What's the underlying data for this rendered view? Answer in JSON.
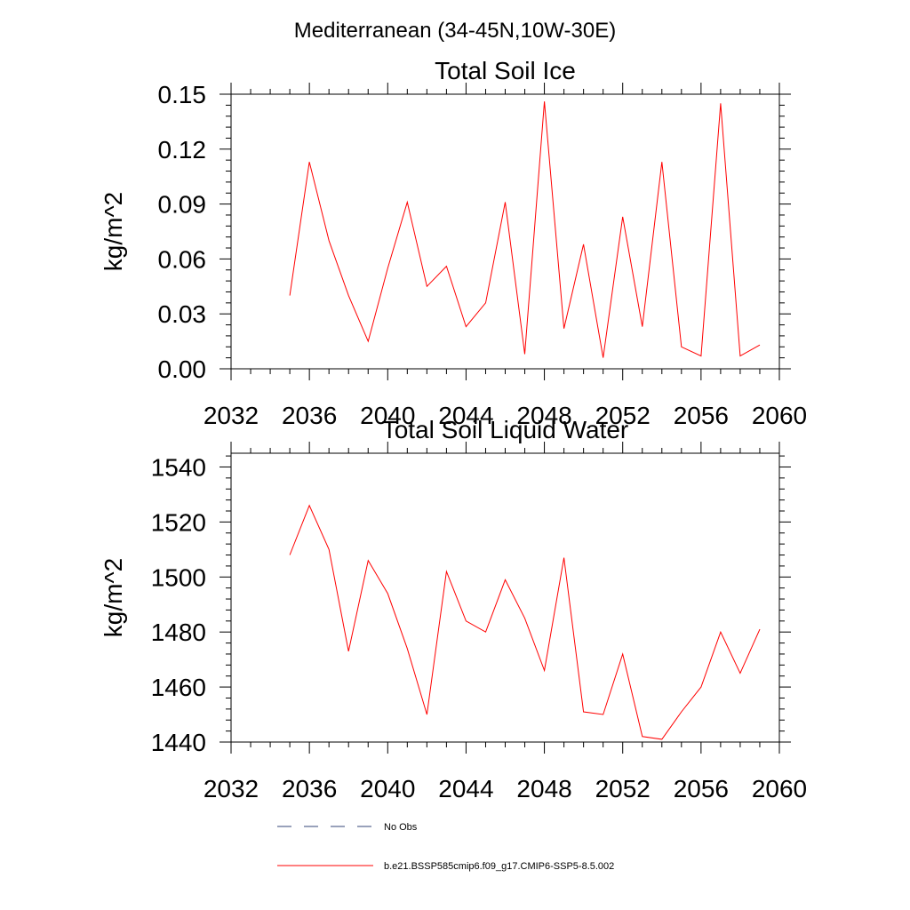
{
  "figure": {
    "main_title": "Mediterranean (34-45N,10W-30E)"
  },
  "chart_data": [
    {
      "type": "line",
      "title": "Total Soil Ice",
      "xlabel": "",
      "ylabel": "kg/m^2",
      "xlim": [
        2032,
        2060
      ],
      "ylim": [
        0,
        0.15
      ],
      "x_ticks": [
        2032,
        2036,
        2040,
        2044,
        2048,
        2052,
        2056,
        2060
      ],
      "x_tick_labels": [
        "2032",
        "2036",
        "2040",
        "2044",
        "2048",
        "2052",
        "2056",
        "2060"
      ],
      "y_ticks": [
        0,
        0.03,
        0.06,
        0.09,
        0.12,
        0.15
      ],
      "y_tick_labels": [
        "0.00",
        "0.03",
        "0.06",
        "0.09",
        "0.12",
        "0.15"
      ],
      "grid": false,
      "x": [
        2035,
        2036,
        2037,
        2038,
        2039,
        2040,
        2041,
        2042,
        2043,
        2044,
        2045,
        2046,
        2047,
        2048,
        2049,
        2050,
        2051,
        2052,
        2053,
        2054,
        2055,
        2056,
        2057,
        2058,
        2059
      ],
      "series": [
        {
          "name": "b.e21.BSSP585cmip6.f09_g17.CMIP6-SSP5-8.5.002",
          "color": "#ff0000",
          "values": [
            0.04,
            0.113,
            0.07,
            0.04,
            0.015,
            0.055,
            0.091,
            0.045,
            0.056,
            0.023,
            0.036,
            0.091,
            0.008,
            0.146,
            0.022,
            0.068,
            0.006,
            0.083,
            0.023,
            0.113,
            0.012,
            0.007,
            0.145,
            0.007,
            0.013
          ]
        }
      ]
    },
    {
      "type": "line",
      "title": "Total Soil Liquid Water",
      "xlabel": "",
      "ylabel": "kg/m^2",
      "xlim": [
        2032,
        2060
      ],
      "ylim": [
        1440,
        1545
      ],
      "x_ticks": [
        2032,
        2036,
        2040,
        2044,
        2048,
        2052,
        2056,
        2060
      ],
      "x_tick_labels": [
        "2032",
        "2036",
        "2040",
        "2044",
        "2048",
        "2052",
        "2056",
        "2060"
      ],
      "y_ticks": [
        1440,
        1460,
        1480,
        1500,
        1520,
        1540
      ],
      "y_tick_labels": [
        "1440",
        "1460",
        "1480",
        "1500",
        "1520",
        "1540"
      ],
      "grid": false,
      "x": [
        2035,
        2036,
        2037,
        2038,
        2039,
        2040,
        2041,
        2042,
        2043,
        2044,
        2045,
        2046,
        2047,
        2048,
        2049,
        2050,
        2051,
        2052,
        2053,
        2054,
        2055,
        2056,
        2057,
        2058,
        2059
      ],
      "series": [
        {
          "name": "b.e21.BSSP585cmip6.f09_g17.CMIP6-SSP5-8.5.002",
          "color": "#ff0000",
          "values": [
            1508,
            1526,
            1510,
            1473,
            1506,
            1494,
            1474,
            1450,
            1502,
            1484,
            1480,
            1499,
            1485,
            1466,
            1507,
            1451,
            1450,
            1472,
            1442,
            1441,
            1451,
            1460,
            1480,
            1465,
            1481
          ]
        }
      ]
    }
  ],
  "legend": {
    "position": "bottom",
    "items": [
      {
        "label": "No Obs",
        "style": "dashed",
        "color": "#334477"
      },
      {
        "label": "b.e21.BSSP585cmip6.f09_g17.CMIP6-SSP5-8.5.002",
        "style": "solid",
        "color": "#ff0000"
      }
    ]
  }
}
